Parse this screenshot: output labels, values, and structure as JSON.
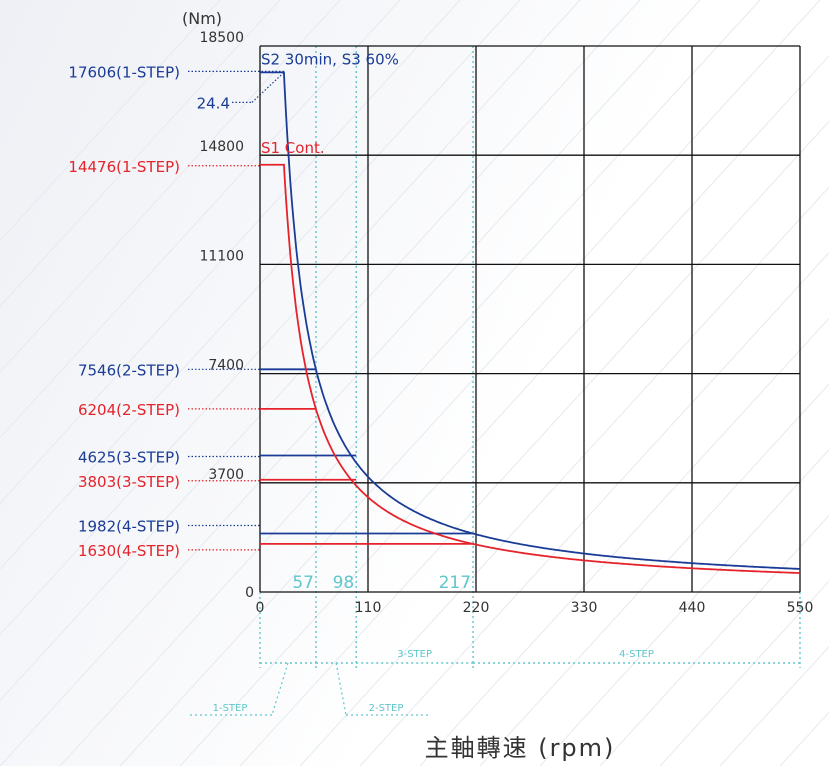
{
  "chart_data": {
    "type": "line",
    "y_unit": "(Nm)",
    "xlabel": "主軸轉速 (rpm)",
    "xlim": [
      0,
      550
    ],
    "ylim": [
      0,
      18500
    ],
    "x_ticks": [
      "0",
      "110",
      "220",
      "330",
      "440",
      "550"
    ],
    "y_ticks": [
      "0",
      "3700",
      "7400",
      "11100",
      "14800",
      "18500"
    ],
    "y_tick_values": [
      0,
      3700,
      7400,
      11100,
      14800,
      18500
    ],
    "x_tick_values": [
      0,
      110,
      220,
      330,
      440,
      550
    ],
    "series": [
      {
        "name": "S2 30min, S3 60%",
        "color": "#1a3c96",
        "corner_speed": 24.4,
        "max_torque": 17606,
        "step_plateaus": [
          {
            "torque": 7546,
            "end_speed": 57
          },
          {
            "torque": 4625,
            "end_speed": 98
          },
          {
            "torque": 1982,
            "end_speed": 217
          }
        ]
      },
      {
        "name": "S1 Cont.",
        "color": "#e5232a",
        "corner_speed": 24.4,
        "max_torque": 14476,
        "step_plateaus": [
          {
            "torque": 6204,
            "end_speed": 57
          },
          {
            "torque": 3803,
            "end_speed": 98
          },
          {
            "torque": 1630,
            "end_speed": 217
          }
        ]
      }
    ],
    "torque_labels": [
      {
        "text": "17606(1-STEP)",
        "value": 17606,
        "color": "blue"
      },
      {
        "text": "14476(1-STEP)",
        "value": 14476,
        "color": "red"
      },
      {
        "text": "7546(2-STEP)",
        "value": 7546,
        "color": "blue"
      },
      {
        "text": "6204(2-STEP)",
        "value": 6204,
        "color": "red"
      },
      {
        "text": "4625(3-STEP)",
        "value": 4625,
        "color": "blue"
      },
      {
        "text": "3803(3-STEP)",
        "value": 3803,
        "color": "red"
      },
      {
        "text": "1982(4-STEP)",
        "value": 1982,
        "color": "blue"
      },
      {
        "text": "1630(4-STEP)",
        "value": 1630,
        "color": "red"
      }
    ],
    "corner_speed_label": "24.4",
    "speed_markers": [
      {
        "text": "57",
        "value": 57
      },
      {
        "text": "98",
        "value": 98
      },
      {
        "text": "217",
        "value": 217
      }
    ],
    "step_ranges": [
      {
        "text": "1-STEP",
        "from": 0,
        "to": 57
      },
      {
        "text": "2-STEP",
        "from": 57,
        "to": 98
      },
      {
        "text": "3-STEP",
        "from": 98,
        "to": 217
      },
      {
        "text": "4-STEP",
        "from": 217,
        "to": 550
      }
    ]
  }
}
